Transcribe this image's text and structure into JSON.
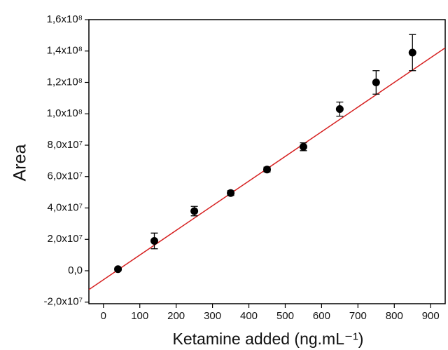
{
  "chart_data": {
    "type": "scatter",
    "x_label": "Ketamine added (ng.mL⁻¹)",
    "y_label": "Area",
    "series": [
      {
        "color": "#000000",
        "x": [
          40,
          140,
          250,
          350,
          450,
          550,
          650,
          750,
          850
        ],
        "values": [
          1000000,
          19000000,
          38000000,
          49500000,
          64500000,
          79000000,
          103000000,
          120000000,
          139000000
        ],
        "errors": [
          1000000,
          5000000,
          3000000,
          1500000,
          1500000,
          2500000,
          4500000,
          7500000,
          11500000
        ]
      }
    ],
    "fit_line": {
      "color": "#d62020",
      "x": [
        -40,
        940
      ],
      "values": [
        -12000000,
        142000000
      ]
    },
    "xlim": [
      -40,
      940
    ],
    "xticks": [
      0,
      100,
      200,
      300,
      400,
      500,
      600,
      700,
      800,
      900
    ],
    "ylim": [
      -21000000,
      160000000
    ],
    "yticks": [
      {
        "value": -20000000,
        "label": "-2,0x10⁷"
      },
      {
        "value": 0,
        "label": "0,0"
      },
      {
        "value": 20000000,
        "label": "2,0x10⁷"
      },
      {
        "value": 40000000,
        "label": "4,0x10⁷"
      },
      {
        "value": 60000000,
        "label": "6,0x10⁷"
      },
      {
        "value": 80000000,
        "label": "8,0x10⁷"
      },
      {
        "value": 100000000,
        "label": "1,0x10⁸"
      },
      {
        "value": 120000000,
        "label": "1,2x10⁸"
      },
      {
        "value": 140000000,
        "label": "1,4x10⁸"
      },
      {
        "value": 160000000,
        "label": "1,6x10⁸"
      }
    ]
  }
}
